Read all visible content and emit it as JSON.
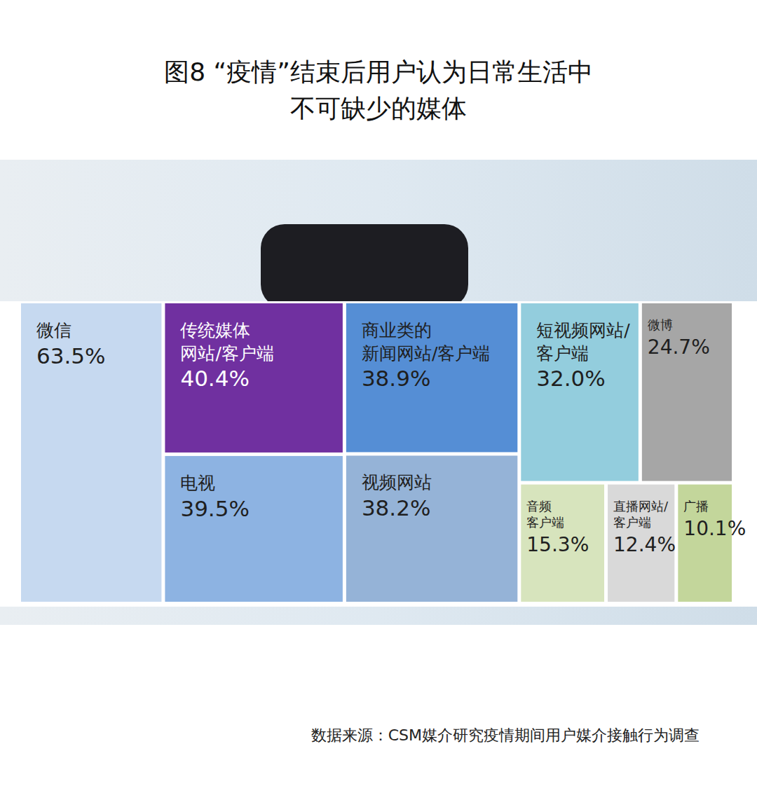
{
  "chart_data": {
    "type": "treemap",
    "title": "图8  “疫情”结束后用户认为日常生活中\n不可缺少的媒体",
    "categories": [
      "微信",
      "传统媒体\n网站/客户端",
      "电视",
      "商业类的\n新闻网站/客户端",
      "视频网站",
      "短视频网站/\n客户端",
      "微博",
      "音频\n客户端",
      "直播网站/\n客户端",
      "广播"
    ],
    "values": [
      63.5,
      40.4,
      39.5,
      38.9,
      38.2,
      32.0,
      24.7,
      15.3,
      12.4,
      10.1
    ],
    "value_labels": [
      "63.5%",
      "40.4%",
      "39.5%",
      "38.9%",
      "38.2%",
      "32.0%",
      "24.7%",
      "15.3%",
      "12.4%",
      "10.1%"
    ],
    "colors": [
      "#c6d9f0",
      "#7030a0",
      "#8db3e2",
      "#558ed5",
      "#95b3d7",
      "#93cddd",
      "#a6a6a6",
      "#d7e4bd",
      "#d9d9d9",
      "#c3d69b"
    ],
    "data_labels": true,
    "source": "数据来源：CSM媒介研究疫情期间用户媒介接触行为调查"
  }
}
